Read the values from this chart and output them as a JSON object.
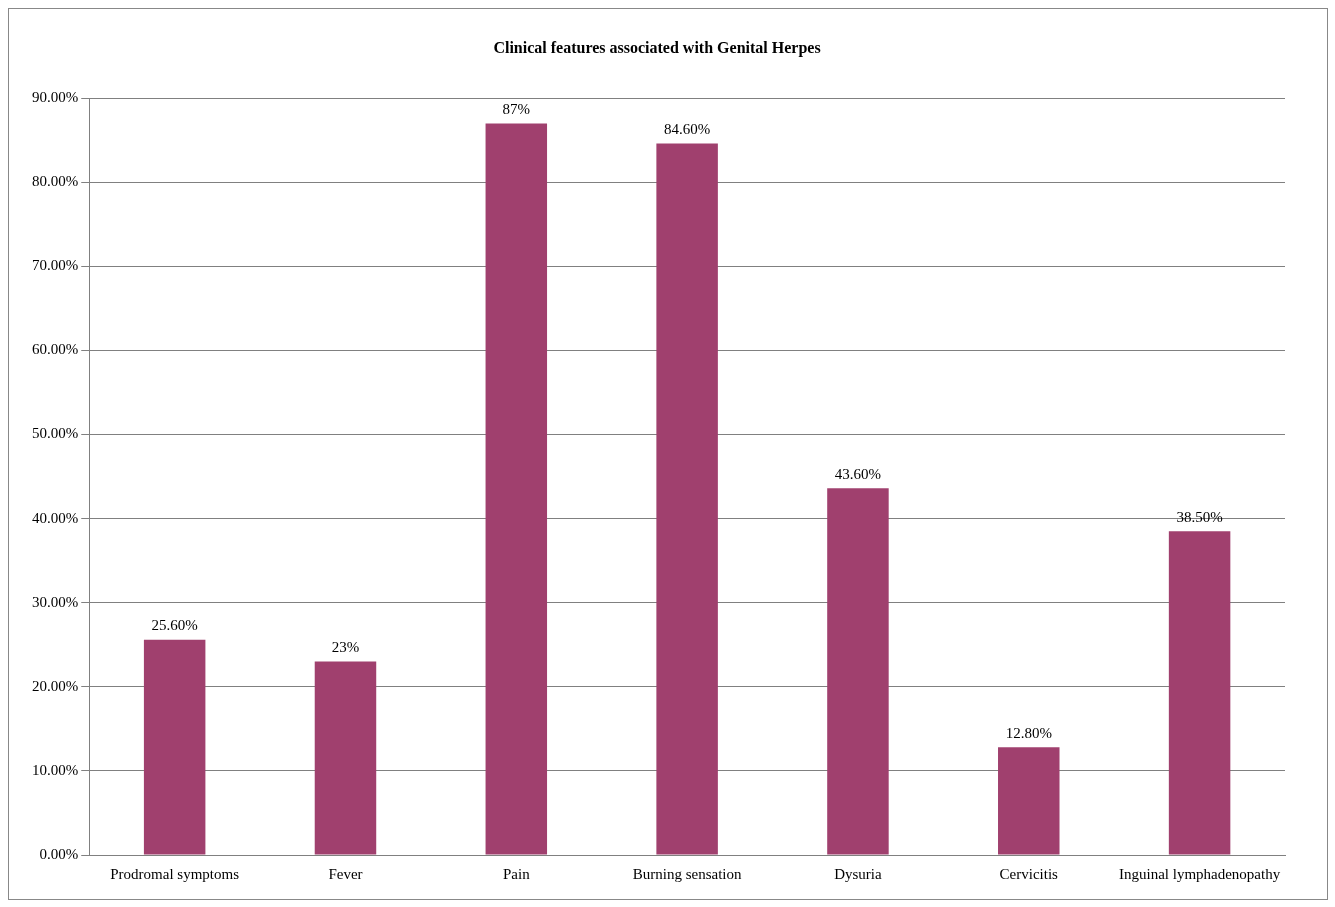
{
  "chart_data": {
    "type": "bar",
    "title": "Clinical features associated with Genital Herpes",
    "categories": [
      "Prodromal symptoms",
      "Fever",
      "Pain",
      "Burning sensation",
      "Dysuria",
      "Cervicitis",
      "Inguinal lymphadenopathy"
    ],
    "values": [
      25.6,
      23,
      87,
      84.6,
      43.6,
      12.8,
      38.5
    ],
    "value_labels": [
      "25.60%",
      "23%",
      "87%",
      "84.60%",
      "43.60%",
      "12.80%",
      "38.50%"
    ],
    "color": "#a0406e",
    "ylim": [
      0,
      90
    ],
    "yticks": [
      {
        "value": 0,
        "label": "0.00%"
      },
      {
        "value": 10,
        "label": "10.00%"
      },
      {
        "value": 20,
        "label": "20.00%"
      },
      {
        "value": 30,
        "label": "30.00%"
      },
      {
        "value": 40,
        "label": "40.00%"
      },
      {
        "value": 50,
        "label": "50.00%"
      },
      {
        "value": 60,
        "label": "60.00%"
      },
      {
        "value": 70,
        "label": "70.00%"
      },
      {
        "value": 80,
        "label": "80.00%"
      },
      {
        "value": 90,
        "label": "90.00%"
      }
    ],
    "grid": "y",
    "legend": false
  }
}
